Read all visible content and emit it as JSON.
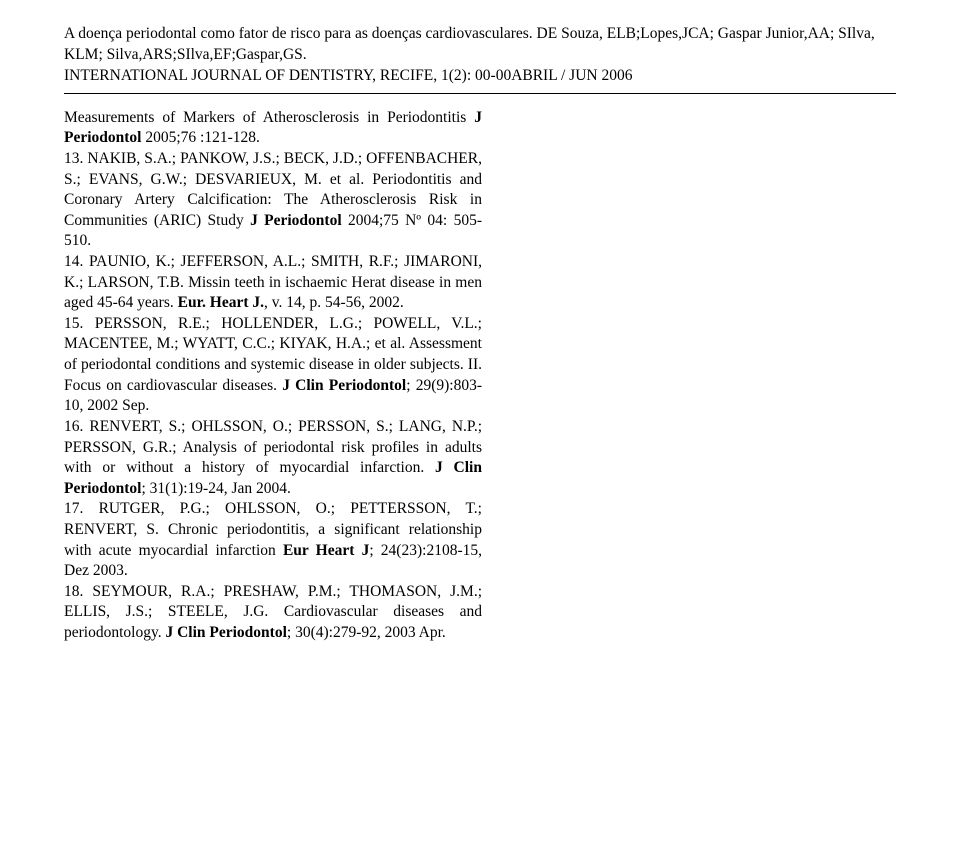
{
  "header": {
    "line1": "A doença periodontal como fator de risco para as doenças cardiovasculares. DE Souza, ELB;Lopes,JCA; Gaspar Junior,AA; SIlva, KLM; Silva,ARS;SIlva,EF;Gaspar,GS.",
    "line2": "INTERNATIONAL JOURNAL OF DENTISTRY, RECIFE, 1(2): 00-00ABRIL / JUN 2006"
  },
  "refs": {
    "r12a": "Measurements of Markers of Atherosclerosis in Periodontitis ",
    "r12b": "J Periodontol",
    "r12c": " 2005;76 :121-128.",
    "r13a": "13. NAKIB, S.A.; PANKOW, J.S.; BECK, J.D.; OFFENBACHER, S.; EVANS, G.W.; DESVARIEUX, M. et al. Periodontitis and Coronary Artery Calcification: The Atherosclerosis Risk in Communities (ARIC) Study ",
    "r13b": "J Periodontol",
    "r13c": " 2004;75 Nº 04: 505-510.",
    "r14a": "14. PAUNIO, K.; JEFFERSON, A.L.; SMITH, R.F.; JIMARONI, K.; LARSON, T.B. Missin teeth in ischaemic Herat disease in men aged 45-64 years. ",
    "r14b": "Eur. Heart J.",
    "r14c": ", v. 14, p. 54-56, 2002.",
    "r15a": "15. PERSSON, R.E.; HOLLENDER, L.G.; POWELL, V.L.; MACENTEE, M.; WYATT, C.C.; KIYAK, H.A.; et al. Assessment of periodontal conditions and systemic disease in older subjects. II. Focus on cardiovascular diseases. ",
    "r15b": "J Clin Periodontol",
    "r15c": "; 29(9):803-10, 2002 Sep.",
    "r16a": "16. RENVERT, S.; OHLSSON, O.; PERSSON, S.; LANG, N.P.; PERSSON, G.R.; Analysis of periodontal risk profiles in adults with or without a history of myocardial infarction. ",
    "r16b": "J Clin Periodontol",
    "r16c": "; 31(1):19-24, Jan 2004.",
    "r17a": "17. RUTGER, P.G.; OHLSSON, O.; PETTERSSON, T.; RENVERT, S. Chronic periodontitis, a significant relationship with acute myocardial infarction ",
    "r17b": "Eur Heart J",
    "r17c": "; 24(23):2108-15, Dez 2003.",
    "r18a": "18. SEYMOUR, R.A.; PRESHAW, P.M.; THOMASON, J.M.; ELLIS, J.S.; STEELE, J.G. Cardiovascular diseases and periodontology. ",
    "r18b": "J Clin Periodontol",
    "r18c": "; 30(4):279-92, 2003 Apr."
  }
}
